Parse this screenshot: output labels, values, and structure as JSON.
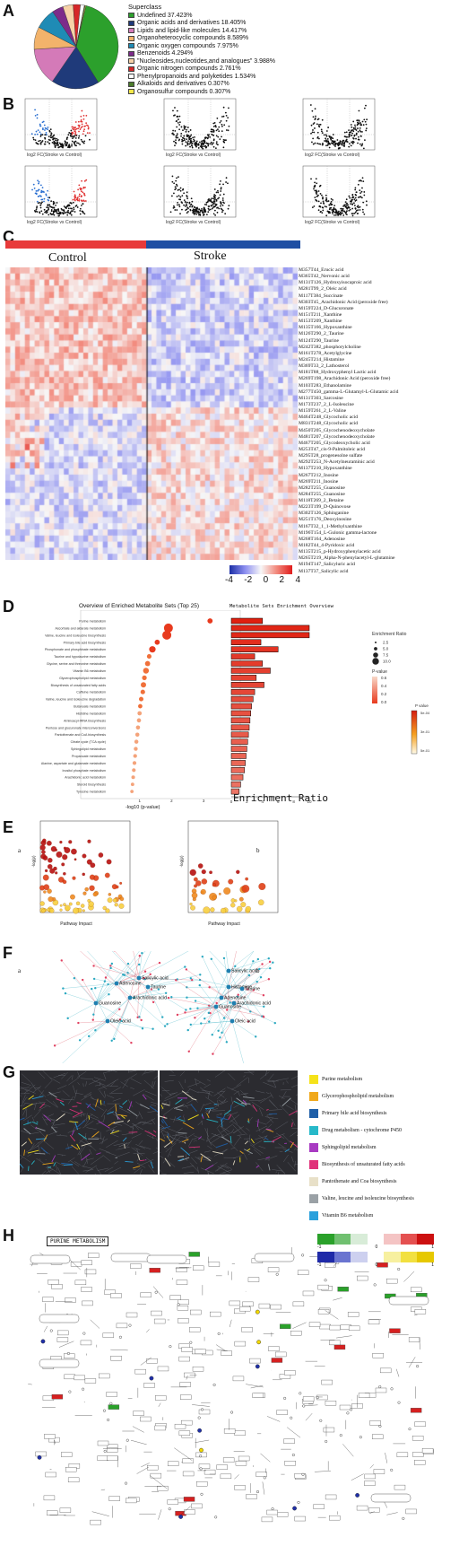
{
  "panels": {
    "A": "A",
    "B": "B",
    "C": "C",
    "D": "D",
    "E": "E",
    "F": "F",
    "G": "G",
    "H": "H"
  },
  "panel_a": {
    "legend_title": "Superclass",
    "items": [
      {
        "label": "Undefined 37.423%",
        "color": "#2ca02c",
        "value": 37.423
      },
      {
        "label": "Organic acids and derivatives 18.405%",
        "color": "#1f3a7a",
        "value": 18.405
      },
      {
        "label": "Lipids and lipid-like molecules 14.417%",
        "color": "#d47ab8",
        "value": 14.417
      },
      {
        "label": "Organoheterocyclic compounds 8.589%",
        "color": "#f2b36b",
        "value": 8.589
      },
      {
        "label": "Organic oxygen compounds 7.975%",
        "color": "#1f8bb5",
        "value": 7.975
      },
      {
        "label": "Benzenoids 4.294%",
        "color": "#7d2b8a",
        "value": 4.294
      },
      {
        "label": "\"Nucleosides,nucleotides,and analogues\" 3.988%",
        "color": "#f7d2a8",
        "value": 3.988
      },
      {
        "label": "Organic nitrogen compounds 2.761%",
        "color": "#d62728",
        "value": 2.761
      },
      {
        "label": "Phenylpropanoids and polyketides 1.534%",
        "color": "#ffffff",
        "value": 1.534
      },
      {
        "label": "Alkaloids and derivatives 0.307%",
        "color": "#4b7c2b",
        "value": 0.307
      },
      {
        "label": "Organosulfur compounds 0.307%",
        "color": "#f5e84a",
        "value": 0.307
      }
    ]
  },
  "panel_b": {
    "xlabel": "log2 FC(Stroke vs Control)"
  },
  "panel_c": {
    "group_left": "Control",
    "group_right": "Stroke",
    "group_left_color": "#e83a3a",
    "group_right_color": "#1f4fa3",
    "scale_ticks": [
      "-4",
      "-2",
      "0",
      "2",
      "4"
    ],
    "metabolites": [
      "M357T44_Erucic acid",
      "M365T42_Nervonic acid",
      "M131T126_Hydroxyisocaproic acid",
      "M281T99_2_Oleic acid",
      "M117T384_Succinate",
      "M303T45_Arachidonic Acid (peroxide free)",
      "M159T224_D-Glucuronate",
      "M151T211_Xanthine",
      "M153T209_Xanthine",
      "M135T166_Hypoxanthine",
      "M126T290_2_Taurine",
      "M124T290_Taurine",
      "M242T382_phosphorylcholine",
      "M161T278_Acetylglycine",
      "M245T214_Histamine",
      "M369T33_2_Lathosterol",
      "M181T88_Hydroxyphenyl Lactic acid",
      "M269T198_Arachidonic Acid (peroxide free)",
      "M103T283_Ethanolamine",
      "M277T450_gamma-L-Glutamyl-L-Glutamic acid",
      "M131T303_Sarcosine",
      "M173T237_2_L-Isoleucine",
      "M159T261_2_L-Valine",
      "M464T248_Glycocholic acid",
      "M831T248_Glycocholic acid",
      "M450T205_Glycochenodeoxycholate",
      "M481T207_Glycochenodeoxycholate",
      "M467T205_Glycodeoxycholic acid",
      "M253T47_cis-9-Palmitoleic acid",
      "M295T28_progenesolne sulfate",
      "M292T253_N-Acetylneuraminic acid",
      "M137T210_Hypoxanthine",
      "M267T212_Inosine",
      "M269T211_Inosine",
      "M282T255_Guanosine",
      "M284T255_Guanosine",
      "M118T269_2_Betaine",
      "M223T199_D-Quinovose",
      "M302T126_Sphinganine",
      "M251T176_Deoxyinosine",
      "M167T32_1_1-Methylxanthine",
      "M196T154_L-Gulonic gamma-lactone",
      "M268T164_Adenosine",
      "M182T44_4-Pyridoxic acid",
      "M135T215_p-Hydroxyphenylacetic acid",
      "M265T219_Alpha-N-phenylacetyl-L-glutamine",
      "M194T147_Salicyluric acid",
      "M137T37_Salicylic acid"
    ]
  },
  "panel_d": {
    "title": "Overview of Enriched Metabolite Sets (Top 25)",
    "xlabel": "-log10 (p-value)",
    "bar_title": "Metabolite Sets Enrichment Overview",
    "bar_xlabel": "Enrichment Ratio",
    "enrich_legend_title": "Enrichment Ratio",
    "enrich_legend": [
      "2.5",
      "5.0",
      "7.5",
      "10.0"
    ],
    "pval_legend_title": "P-value",
    "pval_legend": [
      "0.6",
      "0.4",
      "0.2",
      "0.0"
    ],
    "pval2_legend_title": "P value",
    "pval2_legend": [
      "5e-04",
      "3e-01",
      "5e-01"
    ],
    "dot_xticks": [
      "1",
      "2",
      "3"
    ],
    "bar_xticks": [
      "0",
      "2",
      "4",
      "6",
      "8",
      "10"
    ],
    "chart_data": {
      "type": "bar",
      "categories": [
        "Purine metabolism",
        "Ascorbate and aldarate metabolism",
        "Valine, leucine and isoleucine biosynthesis",
        "Primary bile acid biosynthesis",
        "Phosphonate and phosphinate metabolism",
        "Taurine and hypotaurine metabolism",
        "Glycine, serine and threonine metabolism",
        "Vitamin B6 metabolism",
        "Glycerophospholipid metabolism",
        "Biosynthesis of unsaturated fatty acids",
        "Caffeine metabolism",
        "Valine, leucine and isoleucine degradation",
        "Butanoate metabolism",
        "Histidine metabolism",
        "Aminoacyl-tRNA biosynthesis",
        "Pentose and glucuronate interconversions",
        "Pantothenate and CoA biosynthesis",
        "Citrate cycle (TCA cycle)",
        "Sphingolipid metabolism",
        "Propanoate metabolism",
        "Alanine, aspartate and glutamate metabolism",
        "Inositol phosphate metabolism",
        "Arachidonic acid metabolism",
        "Steroid biosynthesis",
        "Tyrosine metabolism"
      ],
      "neglog10p": [
        3.2,
        1.9,
        1.85,
        1.55,
        1.4,
        1.3,
        1.25,
        1.2,
        1.15,
        1.12,
        1.1,
        1.05,
        1.02,
        1.0,
        0.98,
        0.95,
        0.93,
        0.9,
        0.88,
        0.86,
        0.84,
        0.82,
        0.8,
        0.78,
        0.76
      ],
      "enrichment_ratio": [
        4.0,
        10.0,
        10.0,
        3.8,
        6.0,
        3.0,
        4.0,
        5.0,
        3.2,
        4.2,
        3.0,
        2.8,
        2.6,
        2.5,
        2.4,
        2.3,
        2.2,
        2.1,
        2.0,
        1.9,
        1.8,
        1.7,
        1.5,
        1.2,
        1.0
      ]
    }
  },
  "panel_e": {
    "sub_a": "a",
    "sub_b": "b",
    "xlabel": "Pathway Impact",
    "ylabel": "-log(p)"
  },
  "panel_f": {
    "sub_a": "a",
    "sub_b": "b",
    "nodes_a": [
      "Adenosine",
      "Salicylic acid",
      "Taurine",
      "Guanosine",
      "Arachidonic acid",
      "Oleic acid"
    ],
    "nodes_b": [
      "Salicylic acid",
      "Histamine",
      "Taurine",
      "Adenosine",
      "Guanosine",
      "Arachidonic acid",
      "Oleic acid"
    ]
  },
  "panel_g": {
    "legend": [
      {
        "label": "Purine metabolism",
        "color": "#f5e21a"
      },
      {
        "label": "Glycerophospholipid metabolism",
        "color": "#f0a81c"
      },
      {
        "label": "Primary bile acid biosynthesis",
        "color": "#1f5fa8"
      },
      {
        "label": "Drug metabolism - cytochrome P450",
        "color": "#27b9c9"
      },
      {
        "label": "Sphingolipid metabolism",
        "color": "#a83ac2"
      },
      {
        "label": "Biosynthesis of unsaturated fatty acids",
        "color": "#e0327a"
      },
      {
        "label": "Pantothenate and Coa biosynthesis",
        "color": "#e8e0c8"
      },
      {
        "label": "Valine, leucine and isoleucine biosynthesis",
        "color": "#9aa1a6"
      },
      {
        "label": "Vitamin B6 metabolism",
        "color": "#2aa0dc"
      }
    ]
  },
  "panel_h": {
    "title": "PURINE METABOLISM",
    "scale_top": [
      "-1",
      "0",
      "1"
    ],
    "scale_bottom": [
      "-1",
      "0",
      "1"
    ]
  }
}
